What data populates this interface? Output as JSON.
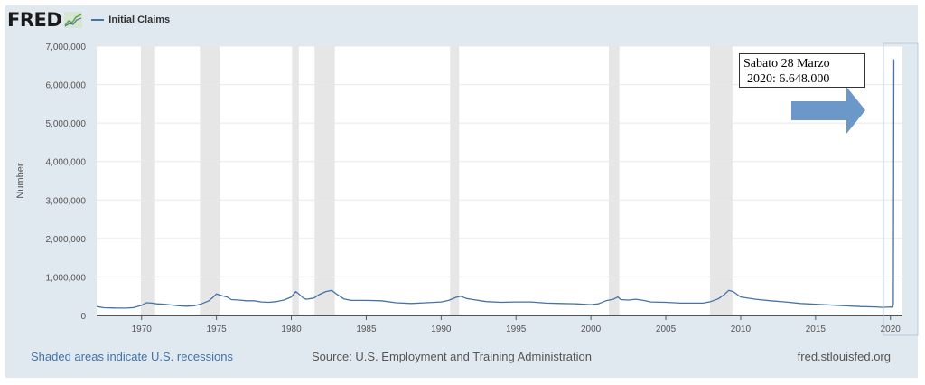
{
  "header": {
    "logo": "FRED",
    "series_label": "Initial Claims"
  },
  "annotation": {
    "line1": "Sabato 28 Marzo",
    "line2": "2020: 6.648.000"
  },
  "footer": {
    "recessions_note": "Shaded areas indicate U.S. recessions",
    "source": "Source: U.S. Employment and Training Administration",
    "site": "fred.stlouisfed.org"
  },
  "colors": {
    "line": "#4572a7",
    "recession": "#e6e6e6",
    "arrow": "#6b97c9",
    "background": "#e1e9f0"
  },
  "chart_data": {
    "type": "line",
    "title": "",
    "xlabel": "",
    "ylabel": "Number",
    "xlim": [
      1967.0,
      2020.8
    ],
    "ylim": [
      0,
      7000000
    ],
    "y_ticks": [
      0,
      1000000,
      2000000,
      3000000,
      4000000,
      5000000,
      6000000,
      7000000
    ],
    "y_tick_labels": [
      "0",
      "1,000,000",
      "2,000,000",
      "3,000,000",
      "4,000,000",
      "5,000,000",
      "6,000,000",
      "7,000,000"
    ],
    "x_ticks": [
      1970,
      1975,
      1980,
      1985,
      1990,
      1995,
      2000,
      2005,
      2010,
      2015,
      2020
    ],
    "x_tick_labels": [
      "1970",
      "1975",
      "1980",
      "1985",
      "1990",
      "1995",
      "2000",
      "2005",
      "2010",
      "2015",
      "2020"
    ],
    "grid": true,
    "recessions": [
      [
        1969.95,
        1970.9
      ],
      [
        1973.9,
        1975.2
      ],
      [
        1980.05,
        1980.5
      ],
      [
        1981.55,
        1982.9
      ],
      [
        1990.6,
        1991.2
      ],
      [
        2001.2,
        2001.9
      ],
      [
        2007.95,
        2009.45
      ]
    ],
    "series": [
      {
        "name": "Initial Claims",
        "x": [
          1967.0,
          1967.5,
          1968.0,
          1968.5,
          1969.0,
          1969.5,
          1970.0,
          1970.3,
          1970.7,
          1971.0,
          1971.5,
          1972.0,
          1972.5,
          1973.0,
          1973.5,
          1974.0,
          1974.5,
          1974.8,
          1975.0,
          1975.3,
          1975.7,
          1976.0,
          1976.5,
          1977.0,
          1977.5,
          1978.0,
          1978.5,
          1979.0,
          1979.5,
          1980.0,
          1980.3,
          1980.5,
          1980.8,
          1981.0,
          1981.5,
          1981.9,
          1982.3,
          1982.7,
          1983.0,
          1983.5,
          1984.0,
          1985.0,
          1986.0,
          1987.0,
          1988.0,
          1989.0,
          1990.0,
          1990.5,
          1991.0,
          1991.3,
          1991.7,
          1992.0,
          1993.0,
          1994.0,
          1995.0,
          1996.0,
          1997.0,
          1998.0,
          1999.0,
          2000.0,
          2000.5,
          2001.0,
          2001.5,
          2001.8,
          2002.0,
          2002.5,
          2003.0,
          2003.5,
          2004.0,
          2005.0,
          2006.0,
          2007.0,
          2007.5,
          2008.0,
          2008.5,
          2008.9,
          2009.2,
          2009.5,
          2010.0,
          2011.0,
          2012.0,
          2013.0,
          2014.0,
          2015.0,
          2016.0,
          2017.0,
          2018.0,
          2019.0,
          2019.5,
          2020.0,
          2020.15,
          2020.19,
          2020.21,
          2020.23,
          2020.24
        ],
        "values": [
          230000,
          200000,
          195000,
          190000,
          190000,
          205000,
          260000,
          330000,
          320000,
          300000,
          290000,
          270000,
          250000,
          240000,
          250000,
          300000,
          380000,
          480000,
          560000,
          520000,
          480000,
          410000,
          400000,
          380000,
          380000,
          350000,
          340000,
          360000,
          400000,
          480000,
          620000,
          560000,
          450000,
          420000,
          450000,
          550000,
          620000,
          650000,
          560000,
          430000,
          390000,
          390000,
          380000,
          330000,
          310000,
          330000,
          350000,
          390000,
          470000,
          500000,
          440000,
          420000,
          360000,
          340000,
          350000,
          350000,
          320000,
          310000,
          300000,
          280000,
          300000,
          380000,
          420000,
          480000,
          410000,
          400000,
          420000,
          390000,
          350000,
          340000,
          320000,
          320000,
          320000,
          360000,
          430000,
          540000,
          650000,
          620000,
          480000,
          420000,
          380000,
          350000,
          310000,
          290000,
          270000,
          250000,
          230000,
          220000,
          210000,
          220000,
          211000,
          282000,
          3307000,
          6648000,
          6648000
        ]
      }
    ]
  }
}
